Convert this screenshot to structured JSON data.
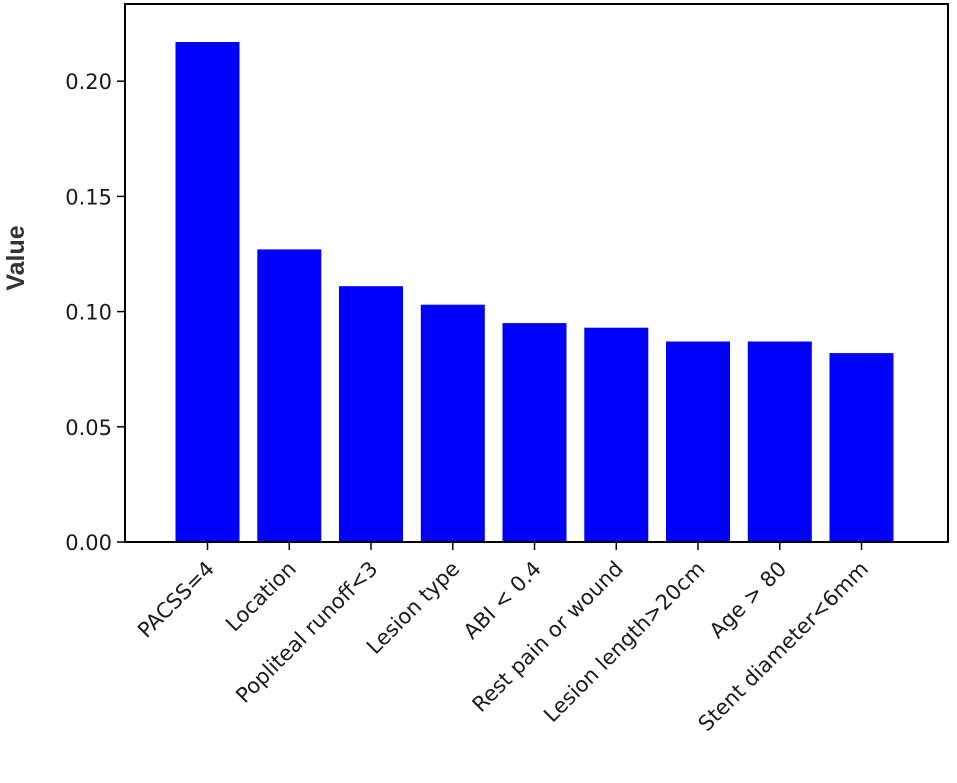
{
  "chart_data": {
    "type": "bar",
    "title": "",
    "xlabel": "",
    "ylabel": "Value",
    "ylim": [
      0,
      0.2335
    ],
    "yticks": [
      {
        "value": 0.0,
        "label": "0.00"
      },
      {
        "value": 0.05,
        "label": "0.05"
      },
      {
        "value": 0.1,
        "label": "0.10"
      },
      {
        "value": 0.15,
        "label": "0.15"
      },
      {
        "value": 0.2,
        "label": "0.20"
      }
    ],
    "categories": [
      "PACSS=4",
      "Location",
      "Popliteal runoff<3",
      "Lesion type",
      "ABI < 0.4",
      "Rest pain or wound",
      "Lesion length>20cm",
      "Age > 80",
      "Stent  diameter<6mm"
    ],
    "values": [
      0.217,
      0.127,
      0.111,
      0.103,
      0.095,
      0.093,
      0.087,
      0.087,
      0.082
    ],
    "bar_color": "#0000ff",
    "grid": false,
    "legend": "none"
  }
}
